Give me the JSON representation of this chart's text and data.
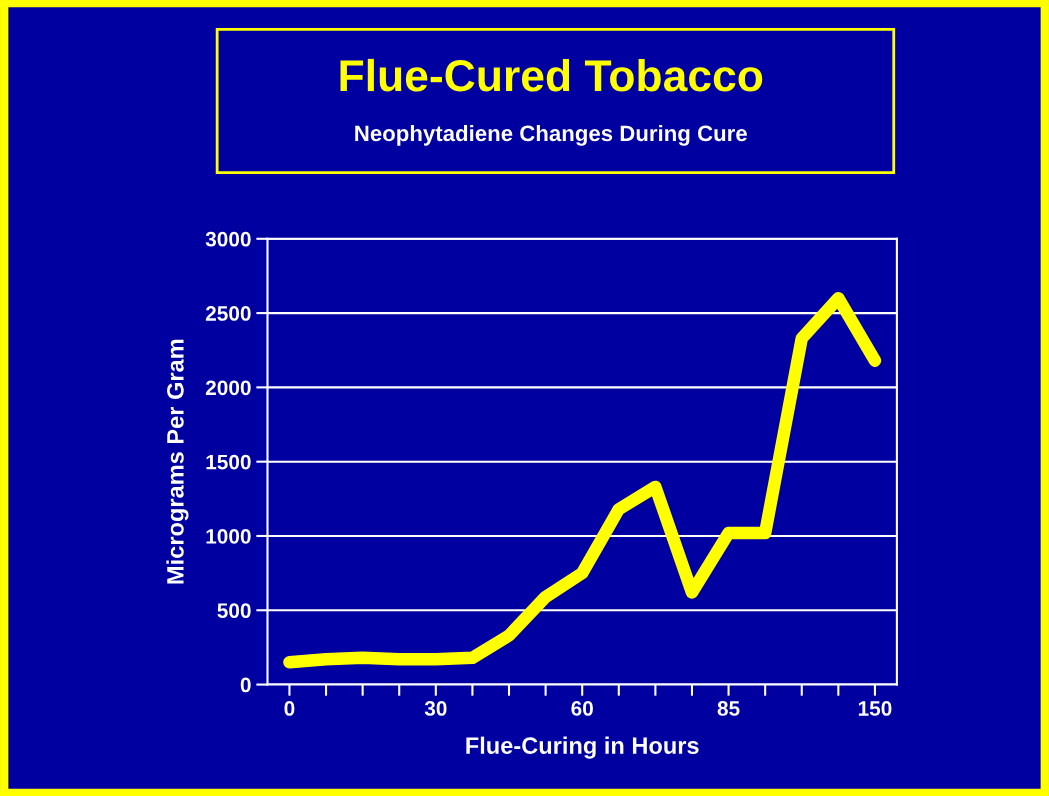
{
  "chart_data": {
    "type": "line",
    "title": "Flue-Cured Tobacco",
    "subtitle": "Neophytadiene Changes During Cure",
    "xlabel": "Flue-Curing in Hours",
    "ylabel": "Micrograms Per Gram",
    "categories": [
      "0",
      null,
      null,
      null,
      "30",
      null,
      null,
      null,
      "60",
      null,
      null,
      null,
      "85",
      null,
      null,
      null,
      "150"
    ],
    "series": [
      {
        "color": "#ffff00",
        "values": [
          150,
          170,
          180,
          170,
          170,
          180,
          330,
          590,
          750,
          1180,
          1330,
          620,
          1020,
          1020,
          2330,
          2600,
          2180
        ]
      }
    ],
    "ylim": [
      0,
      3000
    ],
    "yticks": [
      0,
      500,
      1000,
      1500,
      2000,
      2500,
      3000
    ],
    "grid": "y",
    "legend": false,
    "line_style": "solid"
  }
}
